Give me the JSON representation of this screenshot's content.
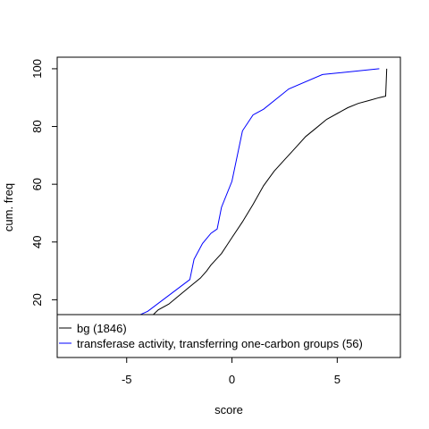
{
  "chart_data": {
    "type": "line",
    "title": "",
    "xlabel": "score",
    "ylabel": "cum. freq",
    "xlim": [
      -8.3,
      8.0
    ],
    "ylim": [
      0,
      104
    ],
    "xticks": [
      -5,
      0,
      5
    ],
    "xtick_labels": [
      "-5",
      "0",
      "5"
    ],
    "yticks": [
      20,
      40,
      60,
      80,
      100
    ],
    "ytick_labels": [
      "20",
      "40",
      "60",
      "80",
      "100"
    ],
    "grid": false,
    "legend": {
      "placement": "bottom",
      "entries": [
        "bg (1846)",
        "transferase activity, transferring one-carbon groups (56)"
      ]
    },
    "series": [
      {
        "name": "bg (1846)",
        "color": "#000000",
        "x": [
          -8.3,
          -5.0,
          -4.0,
          -3.5,
          -3.0,
          -2.5,
          -2.0,
          -1.5,
          -1.2,
          -1.0,
          -0.5,
          0.0,
          0.5,
          1.0,
          1.5,
          2.0,
          2.5,
          3.0,
          3.5,
          4.0,
          4.5,
          5.0,
          5.5,
          6.0,
          6.5,
          7.0,
          7.3,
          7.35
        ],
        "y": [
          2.0,
          7.0,
          13.0,
          16.5,
          18.5,
          21.5,
          24.5,
          27.5,
          30.0,
          32.0,
          36.0,
          41.5,
          47.0,
          53.0,
          59.5,
          64.5,
          68.5,
          72.5,
          76.5,
          79.5,
          82.5,
          84.5,
          86.5,
          88.0,
          89.0,
          90.0,
          90.5,
          100.0
        ]
      },
      {
        "name": "transferase activity, transferring one-carbon groups (56)",
        "color": "#0000ff",
        "x": [
          -8.3,
          -4.0,
          -2.0,
          -1.8,
          -1.4,
          -1.0,
          -0.7,
          -0.5,
          0.0,
          0.5,
          1.0,
          1.5,
          2.7,
          4.3,
          7.0
        ],
        "y": [
          2.0,
          16.0,
          27.0,
          34.0,
          39.5,
          43.0,
          44.5,
          52.0,
          61.0,
          78.5,
          84.0,
          86.0,
          93.0,
          98.0,
          100.0
        ]
      }
    ]
  }
}
